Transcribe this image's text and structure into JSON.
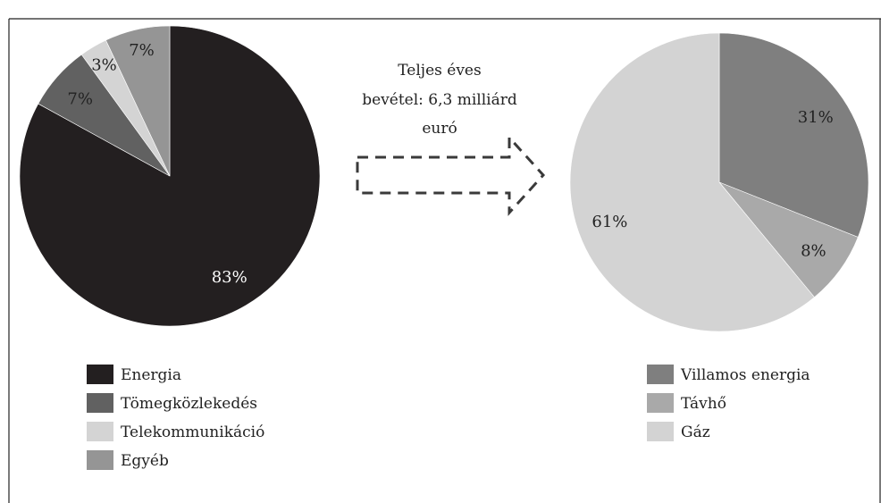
{
  "chart_data": [
    {
      "type": "pie",
      "slices": [
        {
          "name": "Energia",
          "value": 83,
          "label": "83%",
          "color": "#231f20"
        },
        {
          "name": "Tömegközlekedés",
          "value": 7,
          "label": "7%",
          "color": "#616161"
        },
        {
          "name": "Telekommunikáció",
          "value": 3,
          "label": "3%",
          "color": "#d4d4d4"
        },
        {
          "name": "Egyéb",
          "value": 7,
          "label": "7%",
          "color": "#959595"
        }
      ],
      "start_angle_deg": 0,
      "direction": "clockwise",
      "legend_position": "bottom-left"
    },
    {
      "type": "pie",
      "slices": [
        {
          "name": "Villamos energia",
          "value": 31,
          "label": "31%",
          "color": "#7f7f7f"
        },
        {
          "name": "Távhő",
          "value": 8,
          "label": "8%",
          "color": "#a9a9a9"
        },
        {
          "name": "Gáz",
          "value": 61,
          "label": "61%",
          "color": "#d3d3d3"
        }
      ],
      "start_angle_deg": 0,
      "direction": "clockwise",
      "legend_position": "bottom-right"
    }
  ],
  "arrow_text": {
    "line1": "Teljes éves",
    "line2": "bevétel: 6,3 milliárd",
    "line3": "euró"
  }
}
